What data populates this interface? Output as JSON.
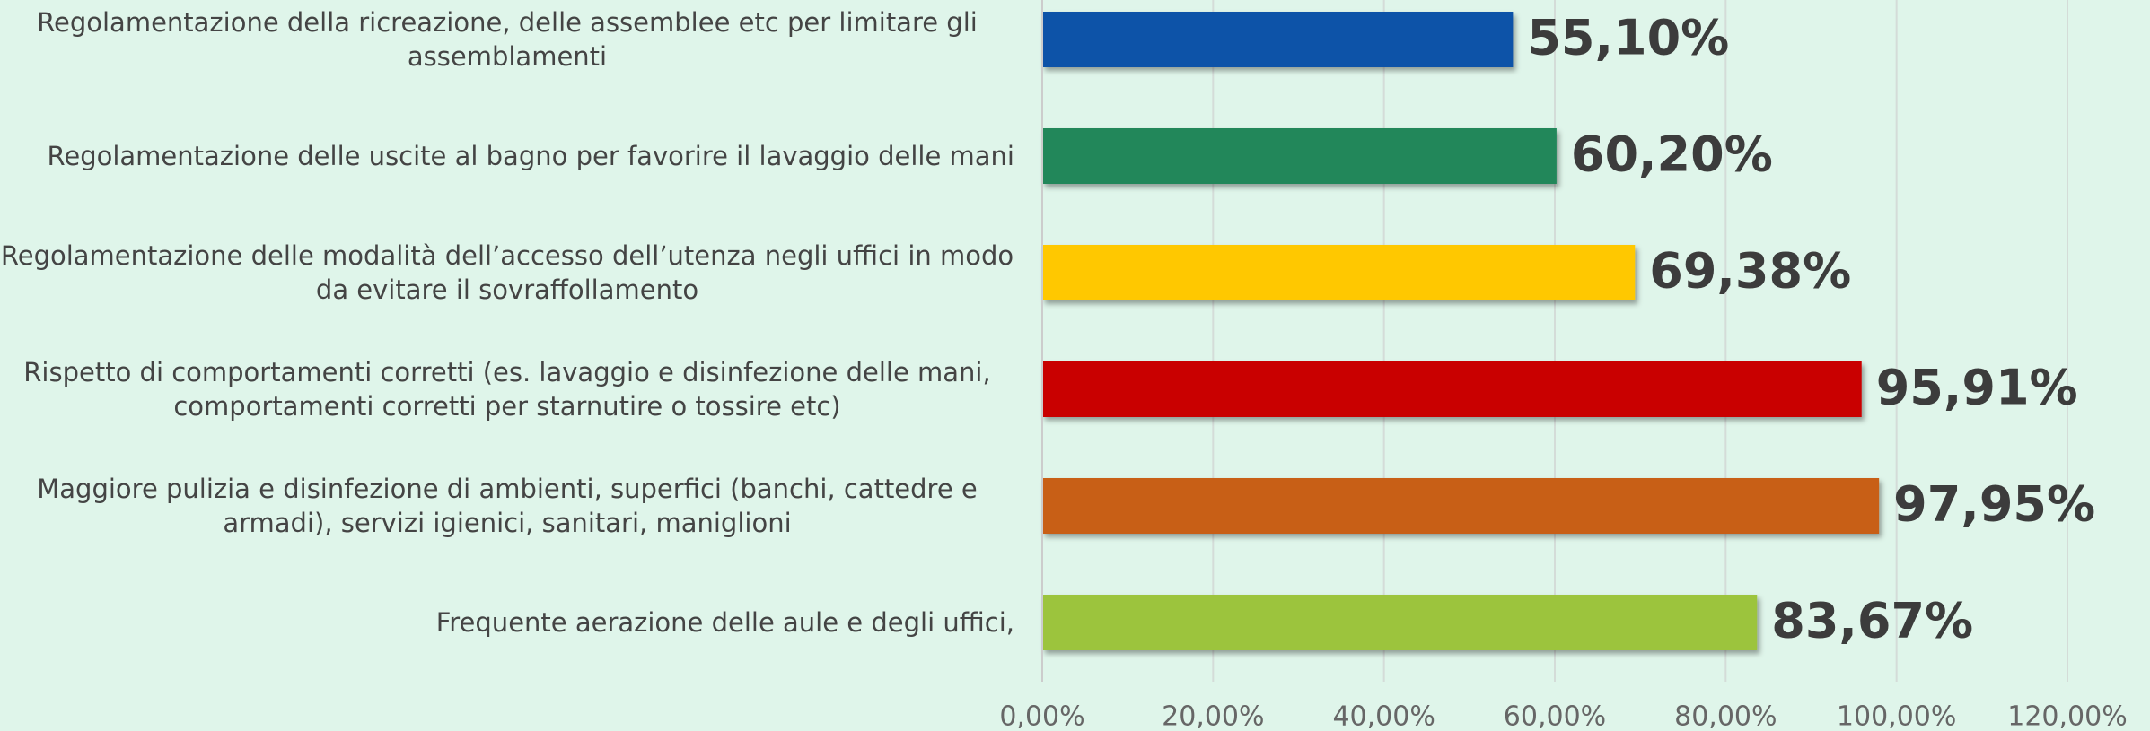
{
  "chart_data": {
    "type": "bar",
    "orientation": "horizontal",
    "categories": [
      "Regolamentazione della ricreazione, delle assemblee etc per limitare gli assemblamenti",
      "Regolamentazione delle uscite al bagno per favorire il lavaggio delle mani",
      "Regolamentazione delle modalità dell’accesso dell’utenza negli uffici in modo da evitare il sovraffollamento",
      "Rispetto di comportamenti corretti (es. lavaggio e disinfezione delle mani, comportamenti corretti per starnutire o tossire etc)",
      "Maggiore pulizia e disinfezione di ambienti, superfici (banchi, cattedre e armadi), servizi igienici, sanitari, maniglioni",
      "Frequente aerazione delle aule e degli uffici,"
    ],
    "values": [
      55.1,
      60.2,
      69.38,
      95.91,
      97.95,
      83.67
    ],
    "value_labels": [
      "55,10%",
      "60,20%",
      "69,38%",
      "95,91%",
      "97,95%",
      "83,67%"
    ],
    "colors": [
      "#0b53a8",
      "#21875a",
      "#ffc800",
      "#c90000",
      "#c85f12",
      "#9cc43c"
    ],
    "xlim": [
      0,
      120
    ],
    "xticks": [
      {
        "value": 0,
        "label": "0,00%"
      },
      {
        "value": 20,
        "label": "20,00%"
      },
      {
        "value": 40,
        "label": "40,00%"
      },
      {
        "value": 60,
        "label": "60,00%"
      },
      {
        "value": 80,
        "label": "80,00%"
      },
      {
        "value": 100,
        "label": "100,00%"
      },
      {
        "value": 120,
        "label": "120,00%"
      }
    ],
    "grid": true
  }
}
